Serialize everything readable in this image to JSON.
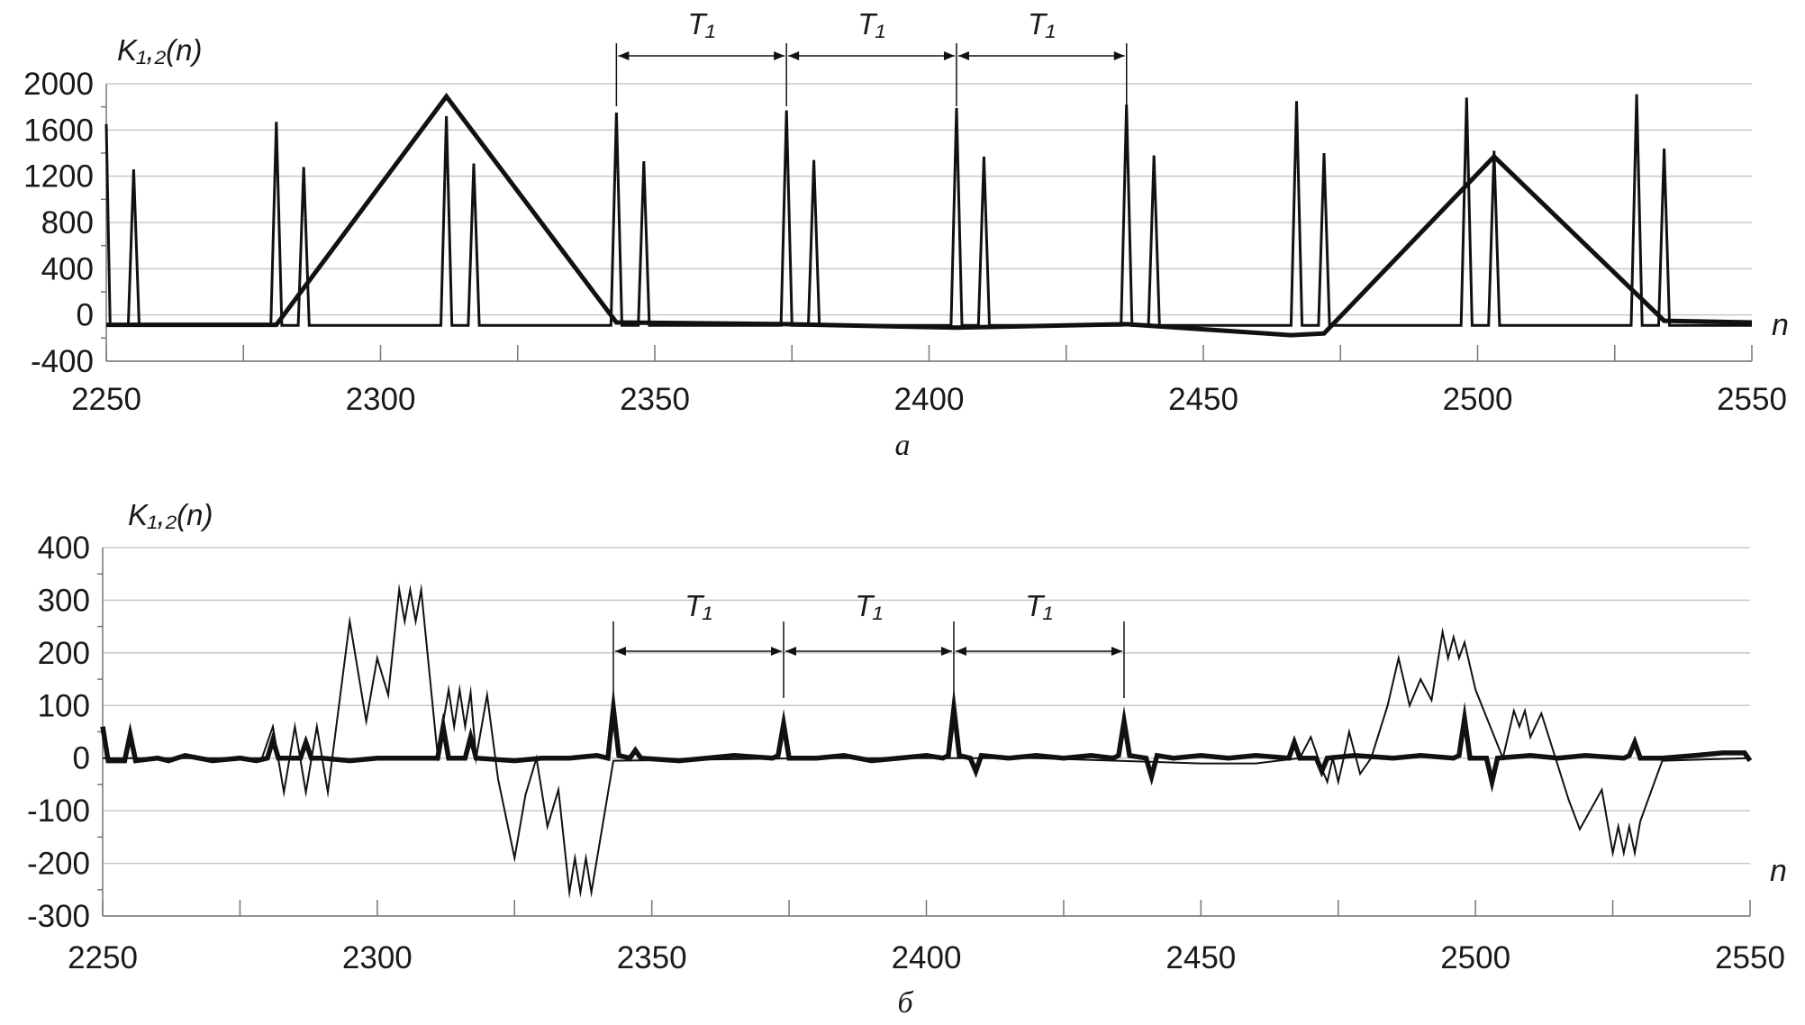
{
  "figure": {
    "panel_a": {
      "caption": "а"
    },
    "panel_b": {
      "caption": "б"
    }
  },
  "chart_data": [
    {
      "id": "panel_a",
      "type": "line",
      "ylabel": "K₁,₂(n)",
      "xlabel": "n",
      "caption": "а",
      "xlim": [
        2250,
        2550
      ],
      "ylim": [
        -400,
        2000
      ],
      "xticks": [
        2250,
        2300,
        2350,
        2400,
        2450,
        2500,
        2550
      ],
      "yticks": [
        -400,
        0,
        400,
        800,
        1200,
        1600,
        2000
      ],
      "grid": "horizontal",
      "legend": "none",
      "period_label": "T₁",
      "period_markers": [
        2343,
        2374,
        2405,
        2436
      ],
      "series": [
        {
          "style": "thin",
          "x": [
            2250,
            2250.7,
            2251.5,
            2254,
            2255,
            2256,
            2280,
            2281,
            2282,
            2285,
            2286,
            2287,
            2311,
            2312,
            2313,
            2316,
            2317,
            2318,
            2342,
            2343,
            2344,
            2347,
            2348,
            2349,
            2373,
            2374,
            2375,
            2378,
            2379,
            2380,
            2404,
            2405,
            2406,
            2409,
            2410,
            2411,
            2435,
            2436,
            2437,
            2440,
            2441,
            2442,
            2466,
            2467,
            2468,
            2471,
            2472,
            2473,
            2497,
            2498,
            2499,
            2502,
            2503,
            2504,
            2528,
            2529,
            2530,
            2533,
            2534,
            2535,
            2550
          ],
          "values": [
            1650,
            -90,
            -90,
            -90,
            1260,
            -90,
            -90,
            1670,
            -90,
            -90,
            1280,
            -90,
            -90,
            1720,
            -90,
            -90,
            1310,
            -90,
            -90,
            1750,
            -90,
            -90,
            1330,
            -90,
            -90,
            1770,
            -90,
            -90,
            1340,
            -90,
            -90,
            1790,
            -90,
            -90,
            1370,
            -90,
            -90,
            1820,
            -90,
            -90,
            1380,
            -90,
            -90,
            1850,
            -90,
            -90,
            1400,
            -90,
            -90,
            1880,
            -90,
            -90,
            1420,
            -90,
            -90,
            1910,
            -90,
            -90,
            1440,
            -90,
            -90
          ]
        },
        {
          "style": "thick",
          "x": [
            2250,
            2281,
            2312,
            2343,
            2374,
            2405,
            2436,
            2466,
            2472,
            2503,
            2534,
            2550
          ],
          "values": [
            -85,
            -85,
            1890,
            -65,
            -80,
            -110,
            -80,
            -175,
            -160,
            1370,
            -50,
            -65
          ]
        }
      ]
    },
    {
      "id": "panel_b",
      "type": "line",
      "ylabel": "K₁,₂(n)",
      "xlabel": "n",
      "caption": "б",
      "xlim": [
        2250,
        2550
      ],
      "ylim": [
        -300,
        400
      ],
      "xticks": [
        2250,
        2300,
        2350,
        2400,
        2450,
        2500,
        2550
      ],
      "yticks": [
        -300,
        -200,
        -100,
        0,
        100,
        200,
        300,
        400
      ],
      "grid": "horizontal",
      "legend": "none",
      "period_label": "T₁",
      "period_markers": [
        2343,
        2374,
        2405,
        2436
      ],
      "series": [
        {
          "style": "thin",
          "x": [
            2250,
            2279,
            2281,
            2283,
            2285,
            2287,
            2289,
            2291,
            2295,
            2298,
            2300,
            2302,
            2304,
            2305,
            2306,
            2307,
            2308,
            2311,
            2313,
            2314,
            2315,
            2316,
            2317,
            2318,
            2320,
            2322,
            2325,
            2327,
            2329,
            2331,
            2333,
            2335,
            2336,
            2337,
            2338,
            2339,
            2343,
            2380,
            2420,
            2450,
            2460,
            2468,
            2470,
            2472,
            2473,
            2474,
            2475,
            2476,
            2477,
            2479,
            2481,
            2484,
            2486,
            2488,
            2490,
            2492,
            2494,
            2495,
            2496,
            2497,
            2498,
            2500,
            2505,
            2507,
            2508,
            2509,
            2510,
            2512,
            2517,
            2519,
            2523,
            2525,
            2526,
            2527,
            2528,
            2529,
            2530,
            2534,
            2550
          ],
          "values": [
            0,
            0,
            60,
            -65,
            60,
            -65,
            60,
            -65,
            260,
            70,
            190,
            120,
            320,
            260,
            320,
            260,
            320,
            5,
            130,
            60,
            130,
            60,
            125,
            0,
            120,
            -40,
            -190,
            -70,
            0,
            -130,
            -60,
            -255,
            -190,
            -255,
            -190,
            -255,
            -5,
            0,
            0,
            -10,
            -10,
            0,
            40,
            -20,
            -45,
            0,
            -45,
            0,
            50,
            -30,
            0,
            100,
            190,
            100,
            150,
            110,
            240,
            190,
            230,
            190,
            220,
            130,
            0,
            90,
            60,
            90,
            40,
            85,
            -80,
            -135,
            -60,
            -180,
            -130,
            -180,
            -130,
            -180,
            -120,
            -5,
            0
          ]
        },
        {
          "style": "thick",
          "x": [
            2250,
            2251,
            2254,
            2255,
            2256,
            2260,
            2262,
            2265,
            2270,
            2275,
            2278,
            2280,
            2281,
            2282,
            2286,
            2287,
            2288,
            2290,
            2295,
            2300,
            2305,
            2311,
            2312,
            2313,
            2316,
            2317,
            2318,
            2325,
            2330,
            2335,
            2340,
            2342,
            2343,
            2344,
            2346,
            2347,
            2348,
            2355,
            2360,
            2365,
            2372,
            2373,
            2374,
            2375,
            2380,
            2385,
            2390,
            2395,
            2400,
            2403,
            2404,
            2405,
            2406,
            2408,
            2409,
            2410,
            2415,
            2420,
            2425,
            2430,
            2434,
            2435,
            2436,
            2437,
            2440,
            2441,
            2442,
            2445,
            2450,
            2455,
            2460,
            2466,
            2467,
            2468,
            2471,
            2472,
            2473,
            2478,
            2485,
            2490,
            2496,
            2497,
            2498,
            2499,
            2502,
            2503,
            2504,
            2510,
            2515,
            2520,
            2527,
            2528,
            2529,
            2530,
            2534,
            2540,
            2545,
            2549,
            2550
          ],
          "values": [
            60,
            -5,
            -5,
            45,
            -5,
            0,
            -5,
            5,
            -5,
            0,
            -5,
            0,
            35,
            0,
            0,
            30,
            0,
            0,
            -5,
            0,
            0,
            0,
            60,
            0,
            0,
            40,
            0,
            -5,
            0,
            0,
            5,
            0,
            95,
            5,
            0,
            15,
            0,
            -5,
            0,
            5,
            0,
            5,
            65,
            0,
            0,
            5,
            -5,
            0,
            5,
            0,
            5,
            95,
            5,
            0,
            -25,
            5,
            0,
            5,
            0,
            5,
            0,
            5,
            70,
            5,
            0,
            -35,
            5,
            0,
            5,
            0,
            5,
            0,
            30,
            0,
            0,
            -25,
            0,
            5,
            0,
            5,
            0,
            5,
            75,
            0,
            0,
            -45,
            0,
            5,
            0,
            5,
            0,
            5,
            30,
            0,
            0,
            5,
            10,
            10,
            -5
          ]
        }
      ]
    }
  ]
}
